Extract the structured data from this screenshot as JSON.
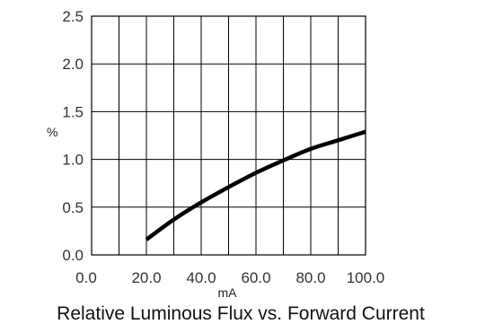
{
  "chart_data": {
    "type": "line",
    "title": "Relative Luminous Flux vs. Forward Current",
    "xlabel": "mA",
    "ylabel": "%",
    "xlim": [
      0,
      100
    ],
    "ylim": [
      0,
      2.5
    ],
    "x_tick_values": [
      0,
      10,
      20,
      30,
      40,
      50,
      60,
      70,
      80,
      90,
      100
    ],
    "x_tick_labels": [
      "0.0",
      "20.0",
      "40.0",
      "60.0",
      "80.0",
      "100.0"
    ],
    "x_label_values": [
      0,
      20,
      40,
      60,
      80,
      100
    ],
    "y_tick_values": [
      0,
      0.5,
      1.0,
      1.5,
      2.0,
      2.5
    ],
    "y_tick_labels": [
      "0.0",
      "0.5",
      "1.0",
      "1.5",
      "2.0",
      "2.5"
    ],
    "grid": true,
    "series": [
      {
        "x": [
          20,
          30,
          40,
          50,
          60,
          70,
          80,
          90,
          100
        ],
        "y": [
          0.16,
          0.37,
          0.55,
          0.71,
          0.86,
          0.99,
          1.11,
          1.2,
          1.29
        ]
      }
    ],
    "colors": {
      "line": "#000000",
      "grid": "#000000",
      "text": "#333333"
    }
  }
}
